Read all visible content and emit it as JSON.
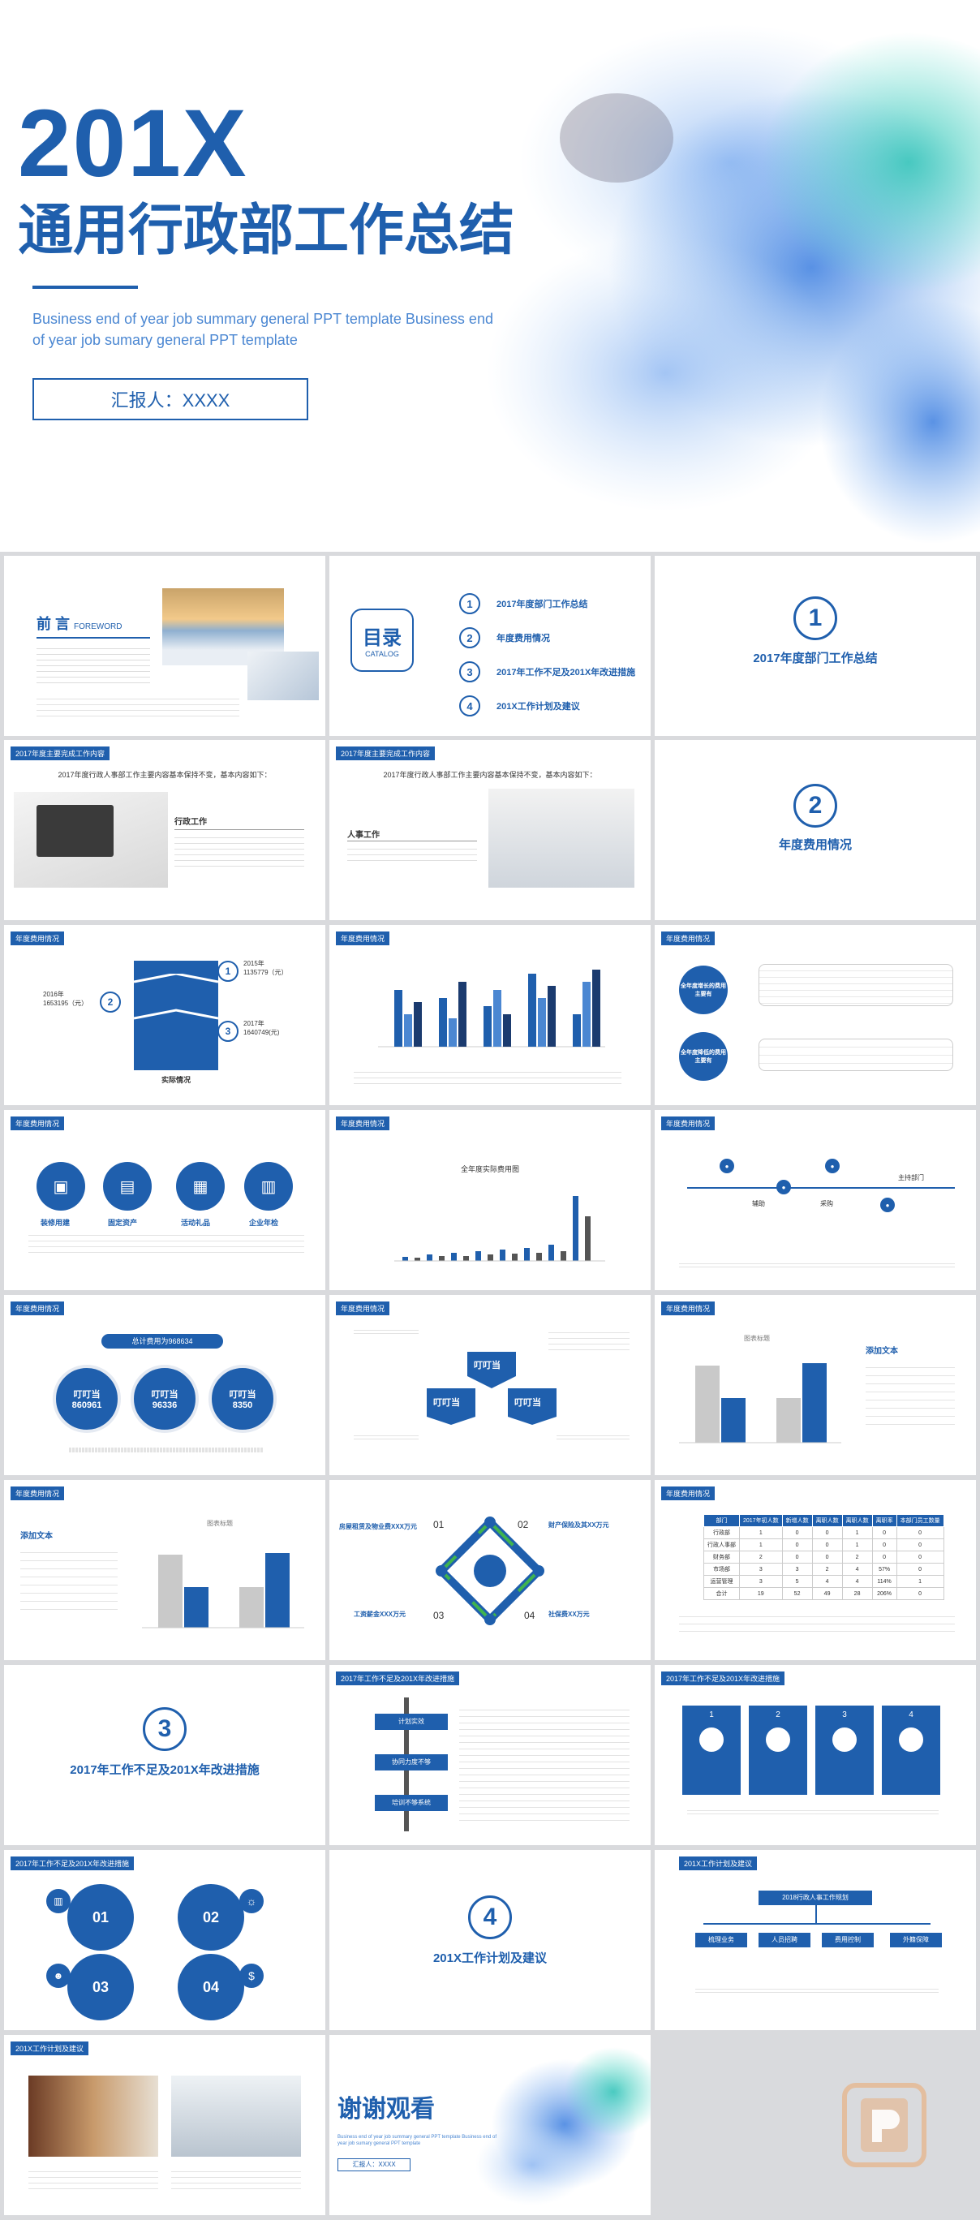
{
  "hero": {
    "year": "201X",
    "title": "通用行政部工作总结",
    "subtitle": "Business end of year job summary general PPT template Business end of year job sumary general PPT template",
    "reporter": "汇报人：XXXX"
  },
  "s1": {
    "title": "前 言",
    "title_en": "FOREWORD"
  },
  "s2": {
    "catalog": "目录",
    "catalog_en": "CATALOG",
    "items": [
      {
        "num": "1",
        "label": "2017年度部门工作总结"
      },
      {
        "num": "2",
        "label": "年度费用情况"
      },
      {
        "num": "3",
        "label": "2017年工作不足及201X年改进措施"
      },
      {
        "num": "4",
        "label": "201X工作计划及建议"
      }
    ]
  },
  "sections": [
    {
      "num": "1",
      "title": "2017年度部门工作总结"
    },
    {
      "num": "2",
      "title": "年度费用情况"
    },
    {
      "num": "3",
      "title": "2017年工作不足及201X年改进措施"
    },
    {
      "num": "4",
      "title": "201X工作计划及建议"
    }
  ],
  "tags": {
    "work": "2017年度主要完成工作内容",
    "cost": "年度费用情况",
    "improve": "2017年工作不足及201X年改进措施",
    "plan": "201X工作计划及建议"
  },
  "s4": {
    "head": "2017年度行政人事部工作主要内容基本保持不变，基本内容如下：",
    "sub": "行政工作"
  },
  "s5": {
    "head": "2017年度行政人事部工作主要内容基本保持不变，基本内容如下：",
    "sub": "人事工作"
  },
  "s7": {
    "y2015_label": "2015年",
    "y2015_val": "1135779（元）",
    "y2016_label": "2016年",
    "y2016_val": "1653195（元）",
    "y2017_label": "2017年",
    "y2017_val": "1640749(元)",
    "caption": "实际情况"
  },
  "s9": {
    "c1": "全年度增长的费用主要有",
    "c2": "全年度降低的费用主要有"
  },
  "s10": {
    "items": [
      "装修用建",
      "固定资产",
      "活动礼品",
      "企业年检"
    ]
  },
  "s11": {
    "title": "全年度实际费用图"
  },
  "s12": {
    "items": [
      "辅助",
      "采购",
      "主持部门"
    ]
  },
  "s13": {
    "banner": "总计费用为968634",
    "circles": [
      {
        "name": "叮叮当",
        "val": "860961"
      },
      {
        "name": "叮叮当",
        "val": "96336"
      },
      {
        "name": "叮叮当",
        "val": "8350"
      }
    ]
  },
  "s14": {
    "top": "叮叮当",
    "left": "叮叮当",
    "right": "叮叮当"
  },
  "s15": {
    "title": "图表标题",
    "add": "添加文本"
  },
  "s16": {
    "title": "图表标题",
    "add": "添加文本"
  },
  "s17": {
    "n1": "01",
    "n2": "02",
    "n3": "03",
    "n4": "04",
    "t1": "房屋租赁及物业费XXX万元",
    "t2": "财产保险及其XX万元",
    "t3": "工资薪金XXX万元",
    "t4": "社保费XX万元"
  },
  "s18": {
    "headers": [
      "部门",
      "2017年初人数",
      "新增人数",
      "离职人数",
      "离职人数",
      "离职率",
      "本部门员工数量"
    ],
    "rows": [
      [
        "行政部",
        "1",
        "0",
        "0",
        "1",
        "0",
        "0"
      ],
      [
        "行政人事部",
        "1",
        "0",
        "0",
        "1",
        "0",
        "0"
      ],
      [
        "财务部",
        "2",
        "0",
        "0",
        "2",
        "0",
        "0"
      ],
      [
        "市场部",
        "3",
        "3",
        "2",
        "4",
        "57%",
        "0"
      ],
      [
        "运营管理",
        "3",
        "5",
        "4",
        "4",
        "114%",
        "1"
      ],
      [
        "合计",
        "19",
        "52",
        "49",
        "28",
        "206%",
        "0"
      ]
    ]
  },
  "s20": {
    "items": [
      "计划实效",
      "协同力度不够",
      "培训不够系统"
    ]
  },
  "s21": {
    "items": [
      "1",
      "2",
      "3",
      "4"
    ]
  },
  "s22": {
    "n1": "01",
    "n2": "02",
    "n3": "03",
    "n4": "04"
  },
  "s24": {
    "top": "2018行政人事工作规划",
    "items": [
      "梳理业务",
      "人员招聘",
      "费用控制",
      "外籍保障"
    ]
  },
  "s27": {
    "title": "谢谢观看",
    "sub": "Business end of year job summary general PPT template Business end of year job sumary general PPT template",
    "reporter": "汇报人：XXXX"
  },
  "colors": {
    "primary": "#1f5fad",
    "light": "#4b87d2",
    "gray": "#c9c9c9",
    "bg": "#d9dadd"
  }
}
